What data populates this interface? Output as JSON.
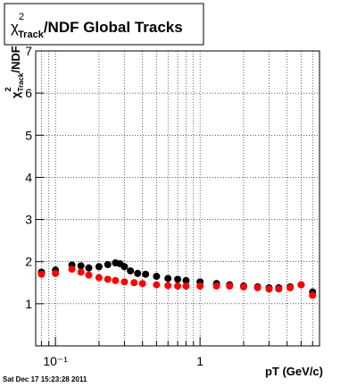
{
  "chart_data": {
    "type": "scatter",
    "title_symbol": "χ",
    "title_sup": "2",
    "title_sub": "Track",
    "title_rest": "/NDF  Global Tracks",
    "ylabel_symbol": "χ",
    "ylabel_sup": "2",
    "ylabel_sub": "Track",
    "ylabel_rest": "/NDF",
    "xlabel": "pT (GeV/c)",
    "timestamp": "Sat Dec 17 15:23:28 2011",
    "log_x": true,
    "grid": true,
    "xlim": [
      0.073,
      6.7
    ],
    "ylim": [
      0,
      7
    ],
    "xticks": [
      {
        "value": 0.1,
        "label": "10⁻¹"
      },
      1
    ],
    "yticks": [
      1,
      2,
      3,
      4,
      5,
      6,
      7
    ],
    "series": [
      {
        "name": "black",
        "color": "#000000",
        "x": [
          0.08,
          0.1,
          0.13,
          0.15,
          0.17,
          0.2,
          0.23,
          0.26,
          0.28,
          0.3,
          0.33,
          0.37,
          0.42,
          0.5,
          0.6,
          0.7,
          0.8,
          1.0,
          1.3,
          1.6,
          2.0,
          2.5,
          3.0,
          3.5,
          4.2,
          5.0,
          6.0
        ],
        "values": [
          1.75,
          1.8,
          1.92,
          1.9,
          1.85,
          1.88,
          1.93,
          1.97,
          1.95,
          1.88,
          1.78,
          1.72,
          1.7,
          1.65,
          1.6,
          1.58,
          1.55,
          1.52,
          1.48,
          1.45,
          1.42,
          1.4,
          1.38,
          1.38,
          1.4,
          1.45,
          1.28
        ]
      },
      {
        "name": "red",
        "color": "#ff0000",
        "x": [
          0.08,
          0.1,
          0.13,
          0.15,
          0.17,
          0.2,
          0.23,
          0.26,
          0.3,
          0.35,
          0.4,
          0.5,
          0.6,
          0.7,
          0.8,
          1.0,
          1.3,
          1.6,
          2.0,
          2.5,
          3.0,
          3.5,
          4.2,
          5.0,
          6.0
        ],
        "values": [
          1.7,
          1.72,
          1.82,
          1.75,
          1.68,
          1.62,
          1.58,
          1.55,
          1.52,
          1.5,
          1.48,
          1.45,
          1.43,
          1.42,
          1.42,
          1.42,
          1.42,
          1.42,
          1.4,
          1.38,
          1.35,
          1.35,
          1.38,
          1.45,
          1.2
        ]
      }
    ]
  }
}
